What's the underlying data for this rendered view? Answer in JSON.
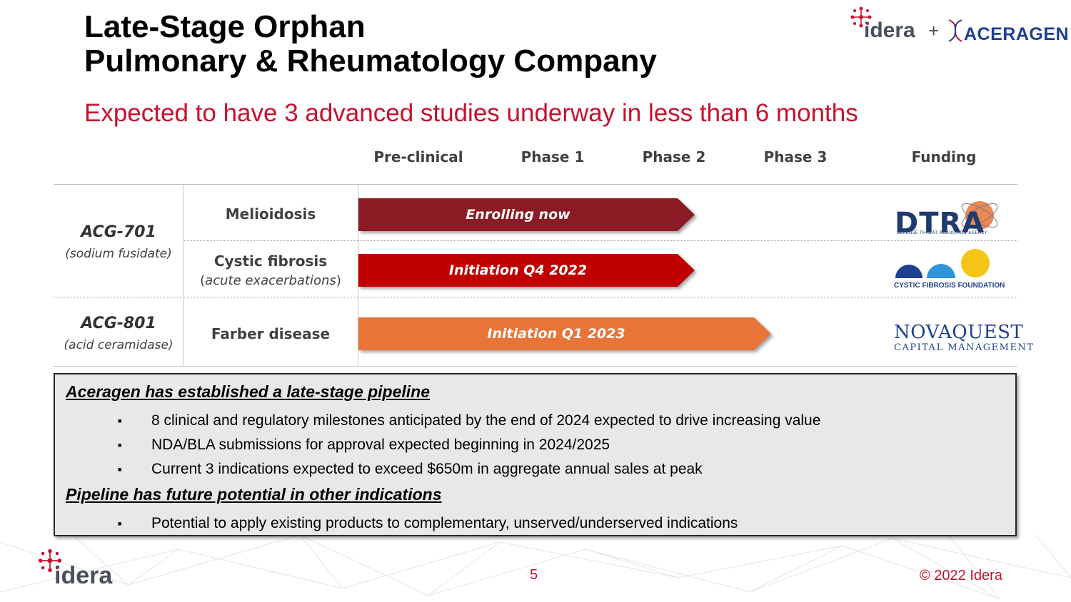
{
  "title_line1": "Late-Stage Orphan",
  "title_line2": "Pulmonary & Rheumatology Company",
  "subtitle": "Expected to have 3 advanced studies underway in less than 6 months",
  "logos": {
    "idera": "idera",
    "plus": "+",
    "aceragen": "ACERAGEN"
  },
  "columns": [
    "Pre-clinical",
    "Phase 1",
    "Phase 2",
    "Phase 3",
    "Funding"
  ],
  "programs": [
    {
      "drug": "ACG-701",
      "drug_sub": "(sodium fusidate)"
    },
    {
      "drug": "ACG-801",
      "drug_sub": "(acid ceramidase)"
    }
  ],
  "indications": [
    {
      "name": "Melioidosis",
      "bar_label": "Enrolling now",
      "stage_reached": "Phase 2",
      "bar_color": "#8b1a24",
      "funder": "DTRA"
    },
    {
      "name": "Cystic fibrosis",
      "paren_open": "(",
      "paren_italic": "acute exacerbations",
      "paren_close": ")",
      "bar_label": "Initiation Q4 2022",
      "stage_reached": "Phase 2",
      "bar_color": "#c00000",
      "funder": "Cystic Fibrosis Foundation"
    },
    {
      "name": "Farber disease",
      "bar_label": "Initiation Q1 2023",
      "stage_reached": "Phase 3",
      "bar_color": "#e87437",
      "funder": "NovaQuest Capital Management"
    }
  ],
  "funders": {
    "dtra": "DTRA",
    "dtra_sub": "DEFENSE THREAT REDUCTION AGENCY",
    "cff": "CYSTIC FIBROSIS FOUNDATION",
    "novaquest": "NOVAQUEST",
    "novaquest_sub": "CAPITAL MANAGEMENT"
  },
  "summary": {
    "heading1": "Aceragen has established a late-stage pipeline",
    "bullets1": [
      "8 clinical and regulatory milestones anticipated by the end of 2024 expected to drive increasing value",
      "NDA/BLA submissions for approval expected beginning in 2024/2025",
      "Current 3 indications expected to exceed $650m in aggregate annual sales at peak"
    ],
    "heading2": "Pipeline has future potential in other indications",
    "bullets2": [
      "Potential to apply existing products to complementary, unserved/underserved indications"
    ],
    "bullet_glyph": "■"
  },
  "footer": {
    "page": "5",
    "copyright": "© 2022 Idera",
    "logo": "idera"
  },
  "colors": {
    "accent_red": "#c8102e",
    "dark_red": "#8b1a24",
    "red": "#c00000",
    "orange": "#e87437",
    "navy": "#1f3f8f"
  }
}
